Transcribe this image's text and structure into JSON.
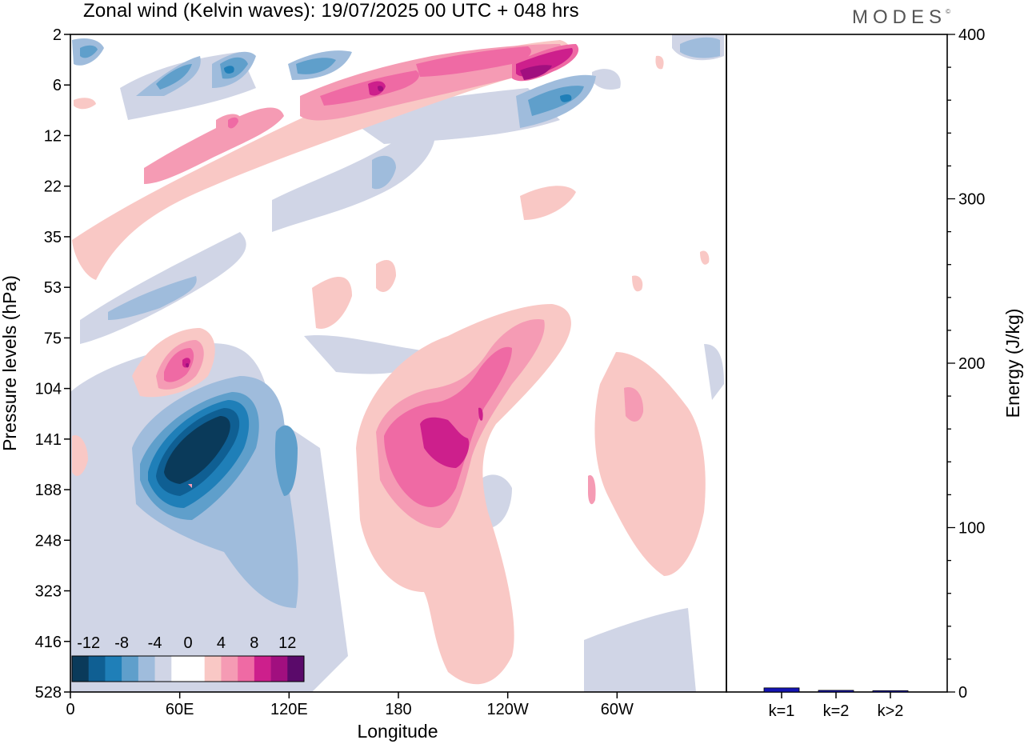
{
  "header": {
    "title": "Zonal wind (Kelvin waves):  19/07/2025  00 UTC  + 048 hrs",
    "logo": "MODES",
    "logo_mark": "©"
  },
  "chart_data": [
    {
      "type": "heatmap",
      "title": "Zonal wind (Kelvin waves):  19/07/2025  00 UTC  + 048 hrs",
      "xlabel": "Longitude",
      "ylabel": "Pressure levels (hPa)",
      "x_ticks": [
        {
          "lon": 0,
          "label": "0"
        },
        {
          "lon": 60,
          "label": "60E"
        },
        {
          "lon": 120,
          "label": "120E"
        },
        {
          "lon": 180,
          "label": "180"
        },
        {
          "lon": 240,
          "label": "120W"
        },
        {
          "lon": 300,
          "label": "60W"
        }
      ],
      "x_range": [
        0,
        360
      ],
      "y_ticks": [
        "2",
        "6",
        "12",
        "22",
        "35",
        "53",
        "75",
        "104",
        "141",
        "188",
        "248",
        "323",
        "416",
        "528"
      ],
      "colorbar": {
        "labels": [
          "-12",
          "-8",
          "-4",
          "0",
          "4",
          "8",
          "12"
        ],
        "levels": [
          -14,
          -12,
          -10,
          -8,
          -6,
          -4,
          -2,
          2,
          4,
          6,
          8,
          10,
          12,
          14
        ],
        "colors": [
          "#0a3a5a",
          "#0f5f93",
          "#1f7fb8",
          "#5f9fcb",
          "#9fbcdc",
          "#d0d5e6",
          "#ffffff",
          "#ffffff",
          "#f9c8c5",
          "#f59bb4",
          "#ef6aa4",
          "#cd1f8c",
          "#a10f7f",
          "#5a0a6a"
        ]
      },
      "features": [
        {
          "name": "negative anomaly",
          "lon": 48,
          "level": "141",
          "value": -14
        },
        {
          "name": "positive anomaly",
          "lon": 200,
          "level": "141",
          "value": 10
        },
        {
          "name": "positive anomaly",
          "lon": 65,
          "level": "104",
          "value": 10
        },
        {
          "name": "positive anomaly",
          "lon": 270,
          "level": "6",
          "value": 12
        },
        {
          "name": "positive anomaly",
          "lon": 165,
          "level": "6",
          "value": 10
        },
        {
          "name": "negative anomaly",
          "lon": 275,
          "level": "12",
          "value": -10
        },
        {
          "name": "negative anomaly",
          "lon": 118,
          "level": "141",
          "value": -10
        }
      ]
    },
    {
      "type": "bar",
      "ylabel": "Energy (J/kg)",
      "categories": [
        "k=1",
        "k=2",
        "k>2"
      ],
      "values": [
        2.5,
        1.0,
        0.8
      ],
      "ylim": [
        0,
        400
      ],
      "y_ticks": [
        "0",
        "100",
        "200",
        "300",
        "400"
      ],
      "bar_color": "#1414b4"
    }
  ]
}
